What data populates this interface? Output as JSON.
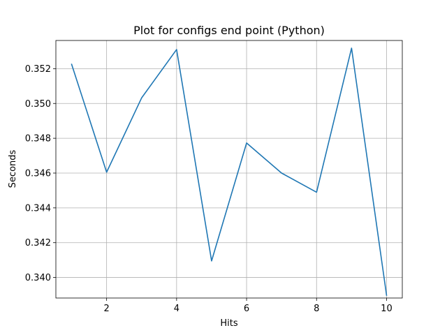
{
  "chart_data": {
    "type": "line",
    "title": "Plot for configs end point (Python)",
    "xlabel": "Hits",
    "ylabel": "Seconds",
    "grid": true,
    "xlim": [
      0.55,
      10.45
    ],
    "ylim": [
      0.33882,
      0.35362
    ],
    "x_ticks": [
      2,
      4,
      6,
      8,
      10
    ],
    "x_tick_labels": [
      "2",
      "4",
      "6",
      "8",
      "10"
    ],
    "y_ticks": [
      0.34,
      0.342,
      0.344,
      0.346,
      0.348,
      0.35,
      0.352
    ],
    "y_tick_labels": [
      "0.340",
      "0.342",
      "0.344",
      "0.346",
      "0.348",
      "0.350",
      "0.352"
    ],
    "series": [
      {
        "color": "#1f77b4",
        "x": [
          1,
          2,
          3,
          4,
          5,
          6,
          7,
          8,
          9,
          10
        ],
        "y": [
          0.35225,
          0.34605,
          0.35032,
          0.3531,
          0.34095,
          0.34773,
          0.346,
          0.3449,
          0.35318,
          0.33898
        ]
      }
    ]
  }
}
